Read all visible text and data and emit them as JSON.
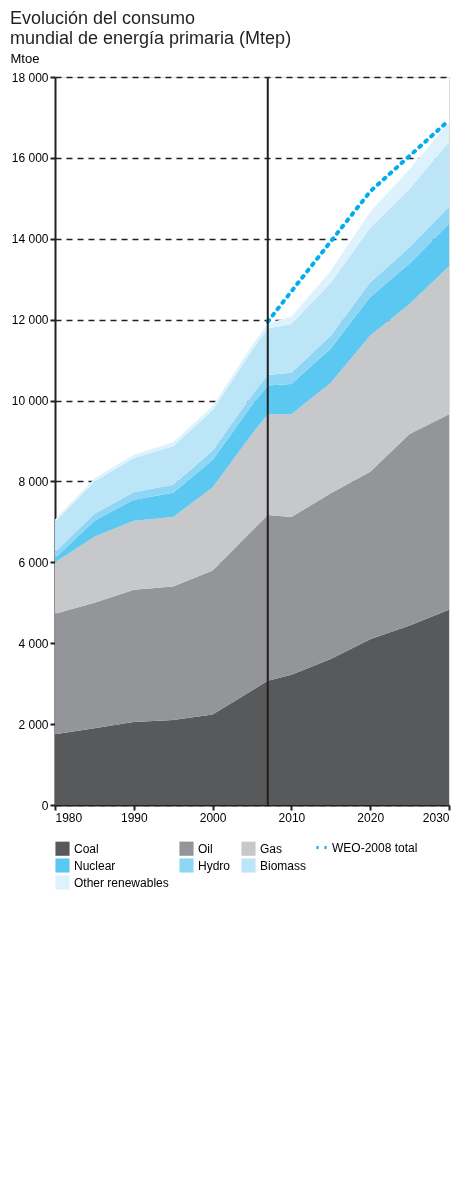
{
  "chart_data": {
    "type": "area",
    "title": "Evolución del consumo mundial de energía primaria (Mtep)",
    "ylabel": "Mtoe",
    "x": [
      1980,
      1985,
      1990,
      1995,
      2000,
      2005,
      2007,
      2010,
      2015,
      2020,
      2025,
      2030
    ],
    "stacked": true,
    "series": [
      {
        "name": "Coal",
        "color": "#58595b",
        "values": [
          1750,
          1900,
          2050,
          2100,
          2240,
          2830,
          3070,
          3220,
          3610,
          4100,
          4440,
          4830
        ]
      },
      {
        "name": "Oil",
        "color": "#939598",
        "values": [
          2980,
          3100,
          3270,
          3300,
          3560,
          3950,
          4100,
          3900,
          4100,
          4140,
          4730,
          4830
        ]
      },
      {
        "name": "Gas",
        "color": "#c7c8ca",
        "values": [
          1270,
          1630,
          1710,
          1720,
          2050,
          2390,
          2490,
          2540,
          2730,
          3370,
          3220,
          3660
        ]
      },
      {
        "name": "Nuclear",
        "color": "#5bc8f2",
        "values": [
          100,
          400,
          520,
          600,
          680,
          720,
          710,
          750,
          850,
          950,
          1000,
          1050
        ]
      },
      {
        "name": "Hydro",
        "color": "#8fd6f5",
        "values": [
          150,
          170,
          180,
          200,
          230,
          250,
          260,
          280,
          320,
          360,
          400,
          420
        ]
      },
      {
        "name": "Biomass",
        "color": "#bde5f8",
        "values": [
          750,
          800,
          850,
          950,
          1000,
          1100,
          1150,
          1200,
          1300,
          1350,
          1450,
          1600
        ]
      },
      {
        "name": "Other renewables",
        "color": "#ddf2fc",
        "values": [
          60,
          70,
          80,
          100,
          100,
          120,
          130,
          180,
          300,
          400,
          480,
          500
        ]
      },
      {
        "name": "WEO-2008 total",
        "type": "line",
        "color": "#00aeef",
        "line_style": "dotted",
        "x": [
          2007,
          2010,
          2020,
          2030
        ],
        "values": [
          11950,
          12700,
          15170,
          16930
        ]
      }
    ],
    "xlim": [
      1980,
      2030
    ],
    "xticks": [
      1980,
      1990,
      2000,
      2010,
      2020,
      2030
    ],
    "ylim": [
      0,
      18000
    ],
    "yticks": [
      0,
      {
        "value": 2000,
        "label": "2 000"
      },
      {
        "value": 4000,
        "label": "4 000"
      },
      {
        "value": 6000,
        "label": "6 000"
      },
      {
        "value": 8000,
        "label": "8 000"
      },
      {
        "value": 10000,
        "label": "10 000"
      },
      {
        "value": 12000,
        "label": "12 000"
      },
      {
        "value": 14000,
        "label": "14 000"
      },
      {
        "value": 16000,
        "label": "16 000"
      },
      {
        "value": 18000,
        "label": "18 000"
      }
    ],
    "ref_lines": [
      {
        "axis": "x",
        "value": 2007,
        "color": "#231f20"
      }
    ],
    "grid": "y",
    "legend": "bottom"
  }
}
